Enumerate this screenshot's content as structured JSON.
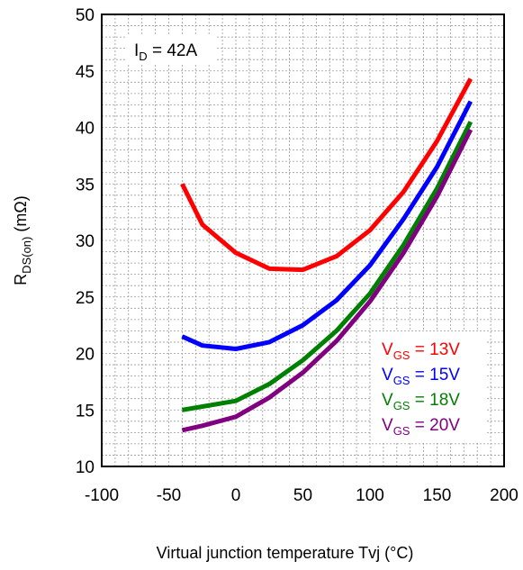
{
  "chart_data": {
    "type": "line",
    "annotation": {
      "main": "I",
      "sub": "D",
      "rest": " = 42A"
    },
    "xlabel": "Virtual junction temperature Tvj (°C)",
    "ylabel": {
      "main": "R",
      "sub": "DS(on)",
      "rest": " (mΩ)"
    },
    "xlim": [
      -100,
      200
    ],
    "ylim": [
      10,
      50
    ],
    "xticks": [
      -100,
      -50,
      0,
      50,
      100,
      150,
      200
    ],
    "yticks": [
      10,
      15,
      20,
      25,
      30,
      35,
      40,
      45,
      50
    ],
    "grid": true,
    "legend_position": "lower-right",
    "x": [
      -40,
      -25,
      0,
      25,
      50,
      75,
      100,
      125,
      150,
      175
    ],
    "series": [
      {
        "name": {
          "main": "V",
          "sub": "GS",
          "rest": " = 13V"
        },
        "color": "#ff0000",
        "values": [
          35.0,
          31.4,
          28.9,
          27.5,
          27.4,
          28.6,
          30.9,
          34.3,
          38.8,
          44.3
        ]
      },
      {
        "name": {
          "main": "V",
          "sub": "GS",
          "rest": " = 15V"
        },
        "color": "#0000ff",
        "values": [
          21.5,
          20.7,
          20.4,
          21.0,
          22.5,
          24.7,
          27.8,
          31.9,
          36.5,
          42.3
        ]
      },
      {
        "name": {
          "main": "V",
          "sub": "GS",
          "rest": " = 18V"
        },
        "color": "#008000",
        "values": [
          15.0,
          15.3,
          15.8,
          17.3,
          19.4,
          22.0,
          25.3,
          29.6,
          34.6,
          40.5
        ]
      },
      {
        "name": {
          "main": "V",
          "sub": "GS",
          "rest": " = 20V"
        },
        "color": "#800080",
        "values": [
          13.2,
          13.6,
          14.4,
          16.1,
          18.3,
          21.1,
          24.6,
          28.9,
          33.9,
          39.8
        ]
      }
    ]
  }
}
